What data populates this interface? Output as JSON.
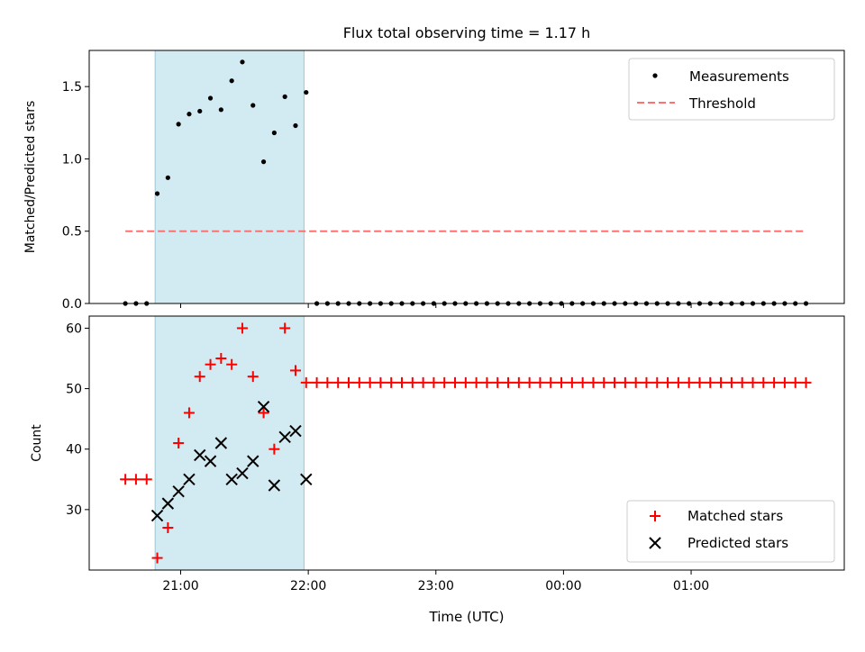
{
  "chart_data": [
    {
      "type": "scatter",
      "title": "Flux total observing time = 1.17 h",
      "xlabel": "",
      "ylabel": "Matched/Predicted stars",
      "xlim": [
        "20:17",
        "02:12"
      ],
      "ylim": [
        0,
        1.75
      ],
      "yticks": [
        0.0,
        0.5,
        1.0,
        1.5
      ],
      "ytick_labels": [
        "0.0",
        "0.5",
        "1.0",
        "1.5"
      ],
      "xticks": [
        "21:00",
        "22:00",
        "23:00",
        "00:00",
        "01:00"
      ],
      "xtick_labels_shown": false,
      "shaded_region": {
        "x": [
          "20:48",
          "21:58"
        ],
        "color": "#add8e6"
      },
      "legend_position": "top-right",
      "series": [
        {
          "name": "Measurements",
          "marker": "dot",
          "color": "#000000",
          "x": [
            "20:34",
            "20:39",
            "20:44",
            "20:49",
            "20:54",
            "20:59",
            "21:04",
            "21:09",
            "21:14",
            "21:19",
            "21:24",
            "21:29",
            "21:34",
            "21:39",
            "21:44",
            "21:49",
            "21:54",
            "21:59",
            "22:04",
            "22:09",
            "22:14",
            "22:19",
            "22:24",
            "22:29",
            "22:34",
            "22:39",
            "22:44",
            "22:49",
            "22:54",
            "22:59",
            "23:04",
            "23:09",
            "23:14",
            "23:19",
            "23:24",
            "23:29",
            "23:34",
            "23:39",
            "23:44",
            "23:49",
            "23:54",
            "23:59",
            "00:04",
            "00:09",
            "00:14",
            "00:19",
            "00:24",
            "00:29",
            "00:34",
            "00:39",
            "00:44",
            "00:49",
            "00:54",
            "00:59",
            "01:04",
            "01:09",
            "01:14",
            "01:19",
            "01:24",
            "01:29",
            "01:34",
            "01:39",
            "01:44",
            "01:49",
            "01:54"
          ],
          "values": [
            0,
            0,
            0,
            0.76,
            0.87,
            1.24,
            1.31,
            1.33,
            1.42,
            1.34,
            1.54,
            1.67,
            1.37,
            0.98,
            1.18,
            1.43,
            1.23,
            1.46,
            0,
            0,
            0,
            0,
            0,
            0,
            0,
            0,
            0,
            0,
            0,
            0,
            0,
            0,
            0,
            0,
            0,
            0,
            0,
            0,
            0,
            0,
            0,
            0,
            0,
            0,
            0,
            0,
            0,
            0,
            0,
            0,
            0,
            0,
            0,
            0,
            0,
            0,
            0,
            0,
            0,
            0,
            0,
            0,
            0,
            0,
            0
          ]
        },
        {
          "name": "Threshold",
          "marker": "dashed-line",
          "color": "#ff7070",
          "x": [
            "20:34",
            "01:54"
          ],
          "values": [
            0.5,
            0.5
          ]
        }
      ]
    },
    {
      "type": "scatter",
      "title": "",
      "xlabel": "Time (UTC)",
      "ylabel": "Count",
      "xlim": [
        "20:17",
        "02:12"
      ],
      "ylim": [
        20,
        62
      ],
      "yticks": [
        30,
        40,
        50,
        60
      ],
      "ytick_labels": [
        "30",
        "40",
        "50",
        "60"
      ],
      "xticks": [
        "21:00",
        "22:00",
        "23:00",
        "00:00",
        "01:00"
      ],
      "xtick_labels": [
        "21:00",
        "22:00",
        "23:00",
        "00:00",
        "01:00"
      ],
      "shaded_region": {
        "x": [
          "20:48",
          "21:58"
        ],
        "color": "#add8e6"
      },
      "legend_position": "bottom-right",
      "series": [
        {
          "name": "Matched stars",
          "marker": "plus",
          "color": "#ff0000",
          "x": [
            "20:34",
            "20:39",
            "20:44",
            "20:49",
            "20:54",
            "20:59",
            "21:04",
            "21:09",
            "21:14",
            "21:19",
            "21:24",
            "21:29",
            "21:34",
            "21:39",
            "21:44",
            "21:49",
            "21:54",
            "21:59",
            "22:04",
            "22:09",
            "22:14",
            "22:19",
            "22:24",
            "22:29",
            "22:34",
            "22:39",
            "22:44",
            "22:49",
            "22:54",
            "22:59",
            "23:04",
            "23:09",
            "23:14",
            "23:19",
            "23:24",
            "23:29",
            "23:34",
            "23:39",
            "23:44",
            "23:49",
            "23:54",
            "23:59",
            "00:04",
            "00:09",
            "00:14",
            "00:19",
            "00:24",
            "00:29",
            "00:34",
            "00:39",
            "00:44",
            "00:49",
            "00:54",
            "00:59",
            "01:04",
            "01:09",
            "01:14",
            "01:19",
            "01:24",
            "01:29",
            "01:34",
            "01:39",
            "01:44",
            "01:49",
            "01:54"
          ],
          "values": [
            35,
            35,
            35,
            22,
            27,
            41,
            46,
            52,
            54,
            55,
            54,
            60,
            52,
            46,
            40,
            60,
            53,
            51,
            51,
            51,
            51,
            51,
            51,
            51,
            51,
            51,
            51,
            51,
            51,
            51,
            51,
            51,
            51,
            51,
            51,
            51,
            51,
            51,
            51,
            51,
            51,
            51,
            51,
            51,
            51,
            51,
            51,
            51,
            51,
            51,
            51,
            51,
            51,
            51,
            51,
            51,
            51,
            51,
            51,
            51,
            51,
            51,
            51,
            51,
            51
          ]
        },
        {
          "name": "Predicted stars",
          "marker": "x",
          "color": "#000000",
          "x": [
            "20:49",
            "20:54",
            "20:59",
            "21:04",
            "21:09",
            "21:14",
            "21:19",
            "21:24",
            "21:29",
            "21:34",
            "21:39",
            "21:44",
            "21:49",
            "21:54",
            "21:59"
          ],
          "values": [
            29,
            31,
            33,
            35,
            39,
            38,
            41,
            35,
            36,
            38,
            47,
            34,
            42,
            43,
            35
          ]
        }
      ]
    }
  ]
}
